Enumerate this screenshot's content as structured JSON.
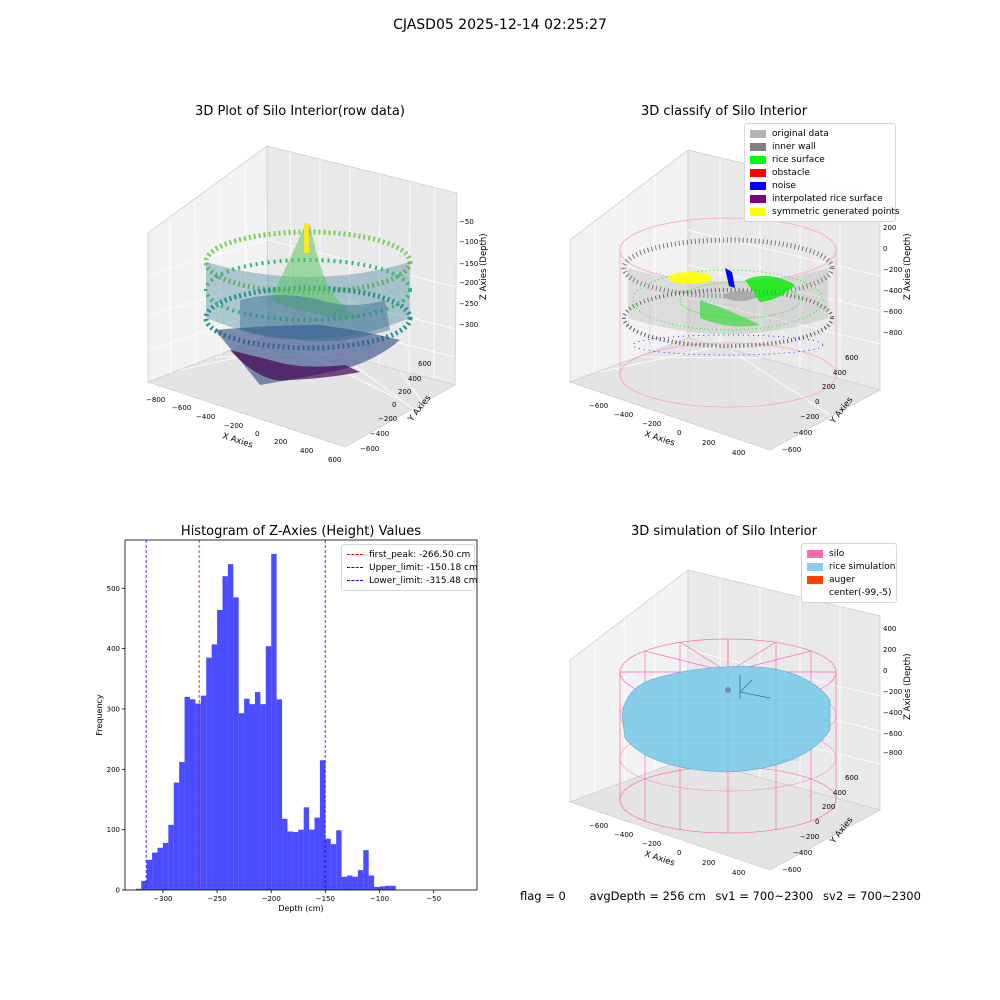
{
  "suptitle": "CJASD05 2025-12-14 02:25:27",
  "panels": {
    "raw": {
      "title": "3D Plot of Silo Interior(row data)",
      "xlabel": "X Axies",
      "ylabel": "Y Axies",
      "zlabel": "Z Axies (Depth)",
      "xticks": [
        "−800",
        "−600",
        "−400",
        "−200",
        "0",
        "200",
        "400",
        "600"
      ],
      "yticks": [
        "600",
        "400",
        "200",
        "0",
        "−200",
        "−400",
        "−600"
      ],
      "zticks": [
        "−50",
        "−100",
        "−150",
        "−200",
        "−250",
        "−300"
      ]
    },
    "classify": {
      "title": "3D classify of Silo Interior",
      "xlabel": "X Axies",
      "ylabel": "Y Axies",
      "zlabel": "Z Axies (Depth)",
      "xticks": [
        "−600",
        "−400",
        "−200",
        "0",
        "200",
        "400"
      ],
      "yticks": [
        "600",
        "400",
        "200",
        "0",
        "−200",
        "−400",
        "−600"
      ],
      "zticks": [
        "200",
        "0",
        "−200",
        "−400",
        "−600",
        "−800"
      ],
      "zticks_top": [
        "400"
      ],
      "legend": [
        {
          "label": "original data",
          "color": "#b3b3b3"
        },
        {
          "label": "inner wall",
          "color": "#808080"
        },
        {
          "label": "rice surface",
          "color": "#00ff00"
        },
        {
          "label": "obstacle",
          "color": "#ff0000"
        },
        {
          "label": "noise",
          "color": "#0000ff"
        },
        {
          "label": "interpolated rice surface",
          "color": "#800080"
        },
        {
          "label": "symmetric generated points",
          "color": "#ffff00"
        }
      ]
    },
    "simulation": {
      "title": "3D simulation of Silo Interior",
      "xlabel": "X Axies",
      "ylabel": "Y Axies",
      "zlabel": "Z Axies (Depth)",
      "xticks": [
        "−600",
        "−400",
        "−200",
        "0",
        "200",
        "400"
      ],
      "yticks": [
        "600",
        "400",
        "200",
        "0",
        "−200",
        "−400",
        "−600"
      ],
      "zticks": [
        "400",
        "200",
        "0",
        "−200",
        "−400",
        "−600",
        "−800"
      ],
      "legend": [
        {
          "label": "silo",
          "color": "#ff69b4"
        },
        {
          "label": "rice simulation",
          "color": "#87ceeb"
        },
        {
          "label": "auger",
          "color": "#ff4500"
        },
        {
          "label": "center(-99,-5)",
          "color": "#ffffff"
        }
      ]
    }
  },
  "chart_data": {
    "type": "bar",
    "title": "Histogram of Z-Axies (Height) Values",
    "xlabel": "Depth (cm)",
    "ylabel": "Frequency",
    "xlim": [
      -335,
      -10
    ],
    "ylim": [
      0,
      580
    ],
    "xticks": [
      -300,
      -250,
      -200,
      -150,
      -100,
      -50
    ],
    "yticks": [
      0,
      100,
      200,
      300,
      400,
      500
    ],
    "bar_color": "#0000ff",
    "bin_width": 5,
    "bin_start": -325,
    "values": [
      2,
      15,
      50,
      62,
      70,
      78,
      108,
      178,
      212,
      320,
      316,
      309,
      322,
      385,
      407,
      464,
      520,
      540,
      485,
      293,
      317,
      308,
      328,
      308,
      404,
      557,
      316,
      118,
      97,
      96,
      100,
      137,
      100,
      120,
      215,
      85,
      76,
      99,
      22,
      24,
      22,
      33,
      66,
      24,
      5,
      6,
      7,
      7
    ],
    "lines": [
      {
        "label": "first_peak: -266.50 cm",
        "x": -266.5,
        "color": "#ff0000"
      },
      {
        "label": "Upper_limit: -150.18 cm",
        "x": -150.18,
        "color": "#0000ff"
      },
      {
        "label": "Lower_limit: -315.48 cm",
        "x": -315.48,
        "color": "#0000ff"
      }
    ],
    "legend_position": "top-right",
    "grid": false
  },
  "status": {
    "flag": "flag = 0",
    "avg_depth": "avgDepth = 256 cm",
    "sv1": "sv1 = 700~2300",
    "sv2": "sv2 = 700~2300"
  }
}
